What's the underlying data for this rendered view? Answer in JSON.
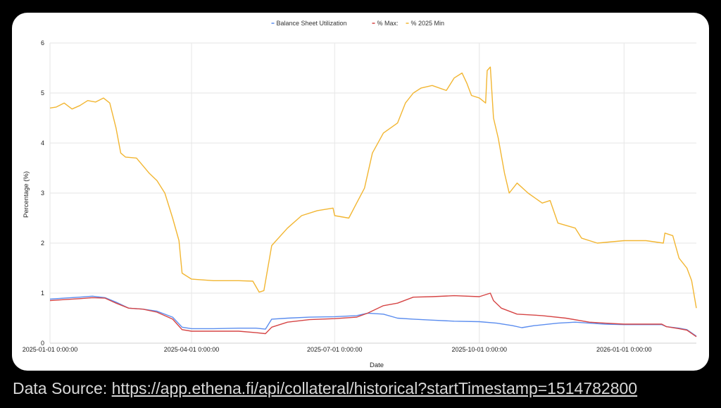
{
  "source": {
    "prefix": "Data Source: ",
    "url": "https://app.ethena.fi/api/collateral/historical?startTimestamp=1514782800"
  },
  "chart_data": {
    "type": "line",
    "title": "",
    "xlabel": "Date",
    "ylabel": "Percentage (%)",
    "ylim": [
      0,
      6
    ],
    "yticks": [
      "0",
      "1",
      "2",
      "3",
      "4",
      "5",
      "6"
    ],
    "xticks": [
      {
        "date": "2025-01-01",
        "label": "2025-01-01 0:00:00"
      },
      {
        "date": "2025-04-01",
        "label": "2025-04-01 0:00:00"
      },
      {
        "date": "2025-07-01",
        "label": "2025-07-01 0:00:00"
      },
      {
        "date": "2025-10-01",
        "label": "2025-10-01 0:00:00"
      },
      {
        "date": "2026-01-01",
        "label": "2026-01-01 0:00:00"
      }
    ],
    "xlim": [
      "2025-01-01",
      "2026-02-16"
    ],
    "grid": true,
    "legend_position": "top-center",
    "series": [
      {
        "name": "Balance Sheet Utilization",
        "color": "#5b8def",
        "points": [
          [
            "2025-01-01",
            0.88
          ],
          [
            "2025-01-10",
            0.9
          ],
          [
            "2025-01-20",
            0.92
          ],
          [
            "2025-01-28",
            0.94
          ],
          [
            "2025-02-05",
            0.91
          ],
          [
            "2025-02-12",
            0.82
          ],
          [
            "2025-02-20",
            0.7
          ],
          [
            "2025-03-01",
            0.68
          ],
          [
            "2025-03-10",
            0.64
          ],
          [
            "2025-03-20",
            0.52
          ],
          [
            "2025-03-26",
            0.32
          ],
          [
            "2025-04-01",
            0.29
          ],
          [
            "2025-04-15",
            0.29
          ],
          [
            "2025-05-01",
            0.3
          ],
          [
            "2025-05-12",
            0.3
          ],
          [
            "2025-05-18",
            0.28
          ],
          [
            "2025-05-22",
            0.48
          ],
          [
            "2025-06-01",
            0.5
          ],
          [
            "2025-06-15",
            0.52
          ],
          [
            "2025-07-01",
            0.53
          ],
          [
            "2025-07-15",
            0.55
          ],
          [
            "2025-07-22",
            0.6
          ],
          [
            "2025-08-01",
            0.58
          ],
          [
            "2025-08-10",
            0.5
          ],
          [
            "2025-08-20",
            0.48
          ],
          [
            "2025-09-01",
            0.46
          ],
          [
            "2025-09-15",
            0.44
          ],
          [
            "2025-10-01",
            0.43
          ],
          [
            "2025-10-12",
            0.4
          ],
          [
            "2025-10-22",
            0.35
          ],
          [
            "2025-10-28",
            0.31
          ],
          [
            "2025-11-05",
            0.35
          ],
          [
            "2025-11-20",
            0.4
          ],
          [
            "2025-12-01",
            0.42
          ],
          [
            "2025-12-10",
            0.4
          ],
          [
            "2025-12-20",
            0.38
          ],
          [
            "2026-01-01",
            0.37
          ],
          [
            "2026-01-15",
            0.37
          ],
          [
            "2026-01-25",
            0.37
          ],
          [
            "2026-01-28",
            0.33
          ],
          [
            "2026-02-05",
            0.3
          ],
          [
            "2026-02-10",
            0.27
          ],
          [
            "2026-02-16",
            0.14
          ]
        ]
      },
      {
        "name": "% Max:",
        "color": "#d64545",
        "points": [
          [
            "2025-01-01",
            0.85
          ],
          [
            "2025-01-10",
            0.87
          ],
          [
            "2025-01-20",
            0.89
          ],
          [
            "2025-01-28",
            0.91
          ],
          [
            "2025-02-05",
            0.9
          ],
          [
            "2025-02-12",
            0.8
          ],
          [
            "2025-02-20",
            0.7
          ],
          [
            "2025-03-01",
            0.68
          ],
          [
            "2025-03-10",
            0.62
          ],
          [
            "2025-03-20",
            0.48
          ],
          [
            "2025-03-26",
            0.27
          ],
          [
            "2025-04-01",
            0.24
          ],
          [
            "2025-04-15",
            0.24
          ],
          [
            "2025-05-01",
            0.24
          ],
          [
            "2025-05-12",
            0.21
          ],
          [
            "2025-05-18",
            0.19
          ],
          [
            "2025-05-22",
            0.32
          ],
          [
            "2025-06-01",
            0.42
          ],
          [
            "2025-06-15",
            0.47
          ],
          [
            "2025-07-01",
            0.49
          ],
          [
            "2025-07-15",
            0.52
          ],
          [
            "2025-07-22",
            0.6
          ],
          [
            "2025-08-01",
            0.75
          ],
          [
            "2025-08-10",
            0.8
          ],
          [
            "2025-08-20",
            0.92
          ],
          [
            "2025-09-01",
            0.93
          ],
          [
            "2025-09-15",
            0.95
          ],
          [
            "2025-10-01",
            0.93
          ],
          [
            "2025-10-08",
            1.0
          ],
          [
            "2025-10-10",
            0.85
          ],
          [
            "2025-10-15",
            0.7
          ],
          [
            "2025-10-25",
            0.58
          ],
          [
            "2025-11-10",
            0.55
          ],
          [
            "2025-11-25",
            0.5
          ],
          [
            "2025-12-10",
            0.42
          ],
          [
            "2025-12-20",
            0.4
          ],
          [
            "2026-01-01",
            0.38
          ],
          [
            "2026-01-15",
            0.38
          ],
          [
            "2026-01-25",
            0.38
          ],
          [
            "2026-01-28",
            0.33
          ],
          [
            "2026-02-05",
            0.29
          ],
          [
            "2026-02-10",
            0.26
          ],
          [
            "2026-02-16",
            0.13
          ]
        ]
      },
      {
        "name": "% 2025 Min",
        "color": "#f2b632",
        "points": [
          [
            "2025-01-01",
            4.7
          ],
          [
            "2025-01-05",
            4.72
          ],
          [
            "2025-01-10",
            4.8
          ],
          [
            "2025-01-15",
            4.68
          ],
          [
            "2025-01-20",
            4.75
          ],
          [
            "2025-01-25",
            4.85
          ],
          [
            "2025-01-30",
            4.82
          ],
          [
            "2025-02-04",
            4.9
          ],
          [
            "2025-02-08",
            4.8
          ],
          [
            "2025-02-12",
            4.3
          ],
          [
            "2025-02-15",
            3.8
          ],
          [
            "2025-02-18",
            3.72
          ],
          [
            "2025-02-25",
            3.7
          ],
          [
            "2025-03-01",
            3.55
          ],
          [
            "2025-03-05",
            3.4
          ],
          [
            "2025-03-10",
            3.25
          ],
          [
            "2025-03-15",
            3.0
          ],
          [
            "2025-03-20",
            2.5
          ],
          [
            "2025-03-24",
            2.05
          ],
          [
            "2025-03-26",
            1.4
          ],
          [
            "2025-04-01",
            1.28
          ],
          [
            "2025-04-15",
            1.25
          ],
          [
            "2025-05-01",
            1.25
          ],
          [
            "2025-05-10",
            1.24
          ],
          [
            "2025-05-14",
            1.02
          ],
          [
            "2025-05-17",
            1.05
          ],
          [
            "2025-05-22",
            1.95
          ],
          [
            "2025-06-01",
            2.3
          ],
          [
            "2025-06-10",
            2.55
          ],
          [
            "2025-06-20",
            2.65
          ],
          [
            "2025-06-30",
            2.7
          ],
          [
            "2025-07-01",
            2.55
          ],
          [
            "2025-07-10",
            2.5
          ],
          [
            "2025-07-15",
            2.8
          ],
          [
            "2025-07-20",
            3.1
          ],
          [
            "2025-07-25",
            3.8
          ],
          [
            "2025-08-01",
            4.2
          ],
          [
            "2025-08-10",
            4.4
          ],
          [
            "2025-08-15",
            4.8
          ],
          [
            "2025-08-20",
            5.0
          ],
          [
            "2025-08-25",
            5.1
          ],
          [
            "2025-09-01",
            5.15
          ],
          [
            "2025-09-10",
            5.05
          ],
          [
            "2025-09-15",
            5.3
          ],
          [
            "2025-09-20",
            5.4
          ],
          [
            "2025-09-23",
            5.2
          ],
          [
            "2025-09-26",
            4.95
          ],
          [
            "2025-10-01",
            4.9
          ],
          [
            "2025-10-05",
            4.8
          ],
          [
            "2025-10-06",
            5.45
          ],
          [
            "2025-10-08",
            5.52
          ],
          [
            "2025-10-10",
            4.5
          ],
          [
            "2025-10-13",
            4.1
          ],
          [
            "2025-10-17",
            3.4
          ],
          [
            "2025-10-20",
            3.0
          ],
          [
            "2025-10-25",
            3.2
          ],
          [
            "2025-11-01",
            3.0
          ],
          [
            "2025-11-10",
            2.8
          ],
          [
            "2025-11-15",
            2.85
          ],
          [
            "2025-11-20",
            2.4
          ],
          [
            "2025-12-01",
            2.3
          ],
          [
            "2025-12-05",
            2.1
          ],
          [
            "2025-12-15",
            2.0
          ],
          [
            "2026-01-01",
            2.05
          ],
          [
            "2026-01-15",
            2.05
          ],
          [
            "2026-01-26",
            2.0
          ],
          [
            "2026-01-27",
            2.2
          ],
          [
            "2026-02-01",
            2.15
          ],
          [
            "2026-02-05",
            1.7
          ],
          [
            "2026-02-10",
            1.5
          ],
          [
            "2026-02-13",
            1.25
          ],
          [
            "2026-02-16",
            0.7
          ]
        ]
      }
    ]
  }
}
